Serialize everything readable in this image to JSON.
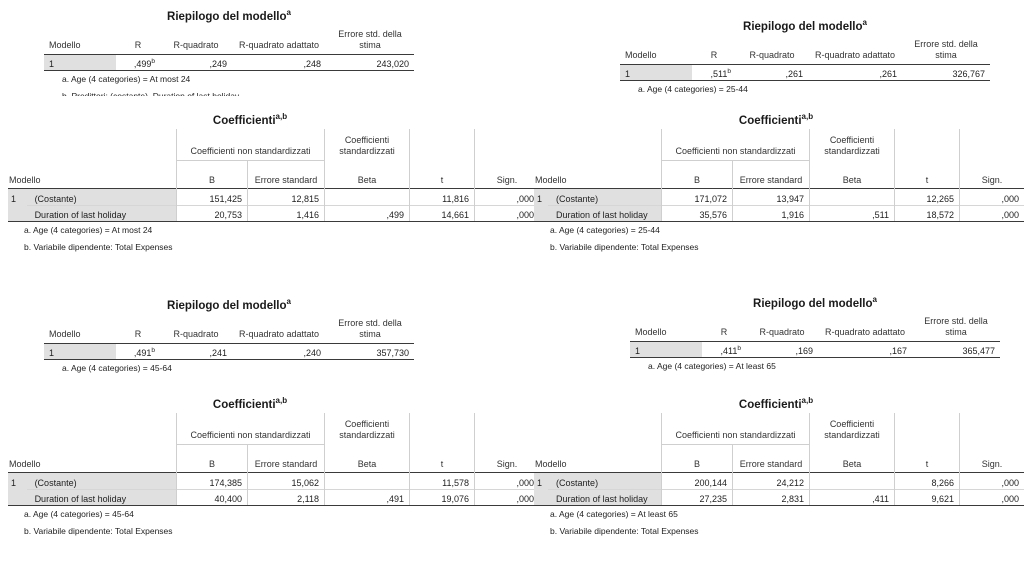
{
  "panels": [
    {
      "model_summary": {
        "title": "Riepilogo del modello",
        "title_sup": "a",
        "headers": [
          "Modello",
          "R",
          "R-quadrato",
          "R-quadrato adattato",
          "Errore std. della stima"
        ],
        "row": {
          "model": "1",
          "r": ",499",
          "r_sup": "b",
          "r2": ",249",
          "r2adj": ",248",
          "se": "243,020"
        },
        "footnotes": [
          "a. Age (4 categories) = At most 24",
          "b. Predittori: (costante), Duration of last holiday"
        ]
      },
      "coefficients": {
        "title": "Coefficienti",
        "title_sup": "a,b",
        "group_nonstd": "Coefficienti non standardizzati",
        "group_std": "Coefficienti standardizzati",
        "headers": [
          "Modello",
          "B",
          "Errore standard",
          "Beta",
          "t",
          "Sign."
        ],
        "rows": [
          {
            "model": "1",
            "label": "(Costante)",
            "b": "151,425",
            "se": "12,815",
            "beta": "",
            "t": "11,816",
            "sig": ",000"
          },
          {
            "model": "",
            "label": "Duration of last holiday",
            "b": "20,753",
            "se": "1,416",
            "beta": ",499",
            "t": "14,661",
            "sig": ",000"
          }
        ],
        "footnotes": [
          "a. Age (4 categories) = At most 24",
          "b. Variabile dipendente: Total Expenses"
        ]
      }
    },
    {
      "model_summary": {
        "title": "Riepilogo del modello",
        "title_sup": "a",
        "headers": [
          "Modello",
          "R",
          "R-quadrato",
          "R-quadrato adattato",
          "Errore std. della stima"
        ],
        "row": {
          "model": "1",
          "r": ",511",
          "r_sup": "b",
          "r2": ",261",
          "r2adj": ",261",
          "se": "326,767"
        },
        "footnotes": [
          "a. Age (4 categories) = 25-44"
        ]
      },
      "coefficients": {
        "title": "Coefficienti",
        "title_sup": "a,b",
        "group_nonstd": "Coefficienti non standardizzati",
        "group_std": "Coefficienti standardizzati",
        "headers": [
          "Modello",
          "B",
          "Errore standard",
          "Beta",
          "t",
          "Sign."
        ],
        "rows": [
          {
            "model": "1",
            "label": "(Costante)",
            "b": "171,072",
            "se": "13,947",
            "beta": "",
            "t": "12,265",
            "sig": ",000"
          },
          {
            "model": "",
            "label": "Duration of last holiday",
            "b": "35,576",
            "se": "1,916",
            "beta": ",511",
            "t": "18,572",
            "sig": ",000"
          }
        ],
        "footnotes": [
          "a. Age (4 categories) = 25-44",
          "b. Variabile dipendente: Total Expenses"
        ]
      }
    },
    {
      "model_summary": {
        "title": "Riepilogo del modello",
        "title_sup": "a",
        "headers": [
          "Modello",
          "R",
          "R-quadrato",
          "R-quadrato adattato",
          "Errore std. della stima"
        ],
        "row": {
          "model": "1",
          "r": ",491",
          "r_sup": "b",
          "r2": ",241",
          "r2adj": ",240",
          "se": "357,730"
        },
        "footnotes": [
          "a. Age (4 categories) = 45-64"
        ]
      },
      "coefficients": {
        "title": "Coefficienti",
        "title_sup": "a,b",
        "group_nonstd": "Coefficienti non standardizzati",
        "group_std": "Coefficienti standardizzati",
        "headers": [
          "Modello",
          "B",
          "Errore standard",
          "Beta",
          "t",
          "Sign."
        ],
        "rows": [
          {
            "model": "1",
            "label": "(Costante)",
            "b": "174,385",
            "se": "15,062",
            "beta": "",
            "t": "11,578",
            "sig": ",000"
          },
          {
            "model": "",
            "label": "Duration of last holiday",
            "b": "40,400",
            "se": "2,118",
            "beta": ",491",
            "t": "19,076",
            "sig": ",000"
          }
        ],
        "footnotes": [
          "a. Age (4 categories) = 45-64",
          "b. Variabile dipendente: Total Expenses"
        ]
      }
    },
    {
      "model_summary": {
        "title": "Riepilogo del modello",
        "title_sup": "a",
        "headers": [
          "Modello",
          "R",
          "R-quadrato",
          "R-quadrato adattato",
          "Errore std. della stima"
        ],
        "row": {
          "model": "1",
          "r": ",411",
          "r_sup": "b",
          "r2": ",169",
          "r2adj": ",167",
          "se": "365,477"
        },
        "footnotes": [
          "a. Age (4 categories) = At least 65"
        ]
      },
      "coefficients": {
        "title": "Coefficienti",
        "title_sup": "a,b",
        "group_nonstd": "Coefficienti non standardizzati",
        "group_std": "Coefficienti standardizzati",
        "headers": [
          "Modello",
          "B",
          "Errore standard",
          "Beta",
          "t",
          "Sign."
        ],
        "rows": [
          {
            "model": "1",
            "label": "(Costante)",
            "b": "200,144",
            "se": "24,212",
            "beta": "",
            "t": "8,266",
            "sig": ",000"
          },
          {
            "model": "",
            "label": "Duration of last holiday",
            "b": "27,235",
            "se": "2,831",
            "beta": ",411",
            "t": "9,621",
            "sig": ",000"
          }
        ],
        "footnotes": [
          "a. Age (4 categories) = At least 65",
          "b. Variabile dipendente: Total Expenses"
        ]
      }
    }
  ]
}
